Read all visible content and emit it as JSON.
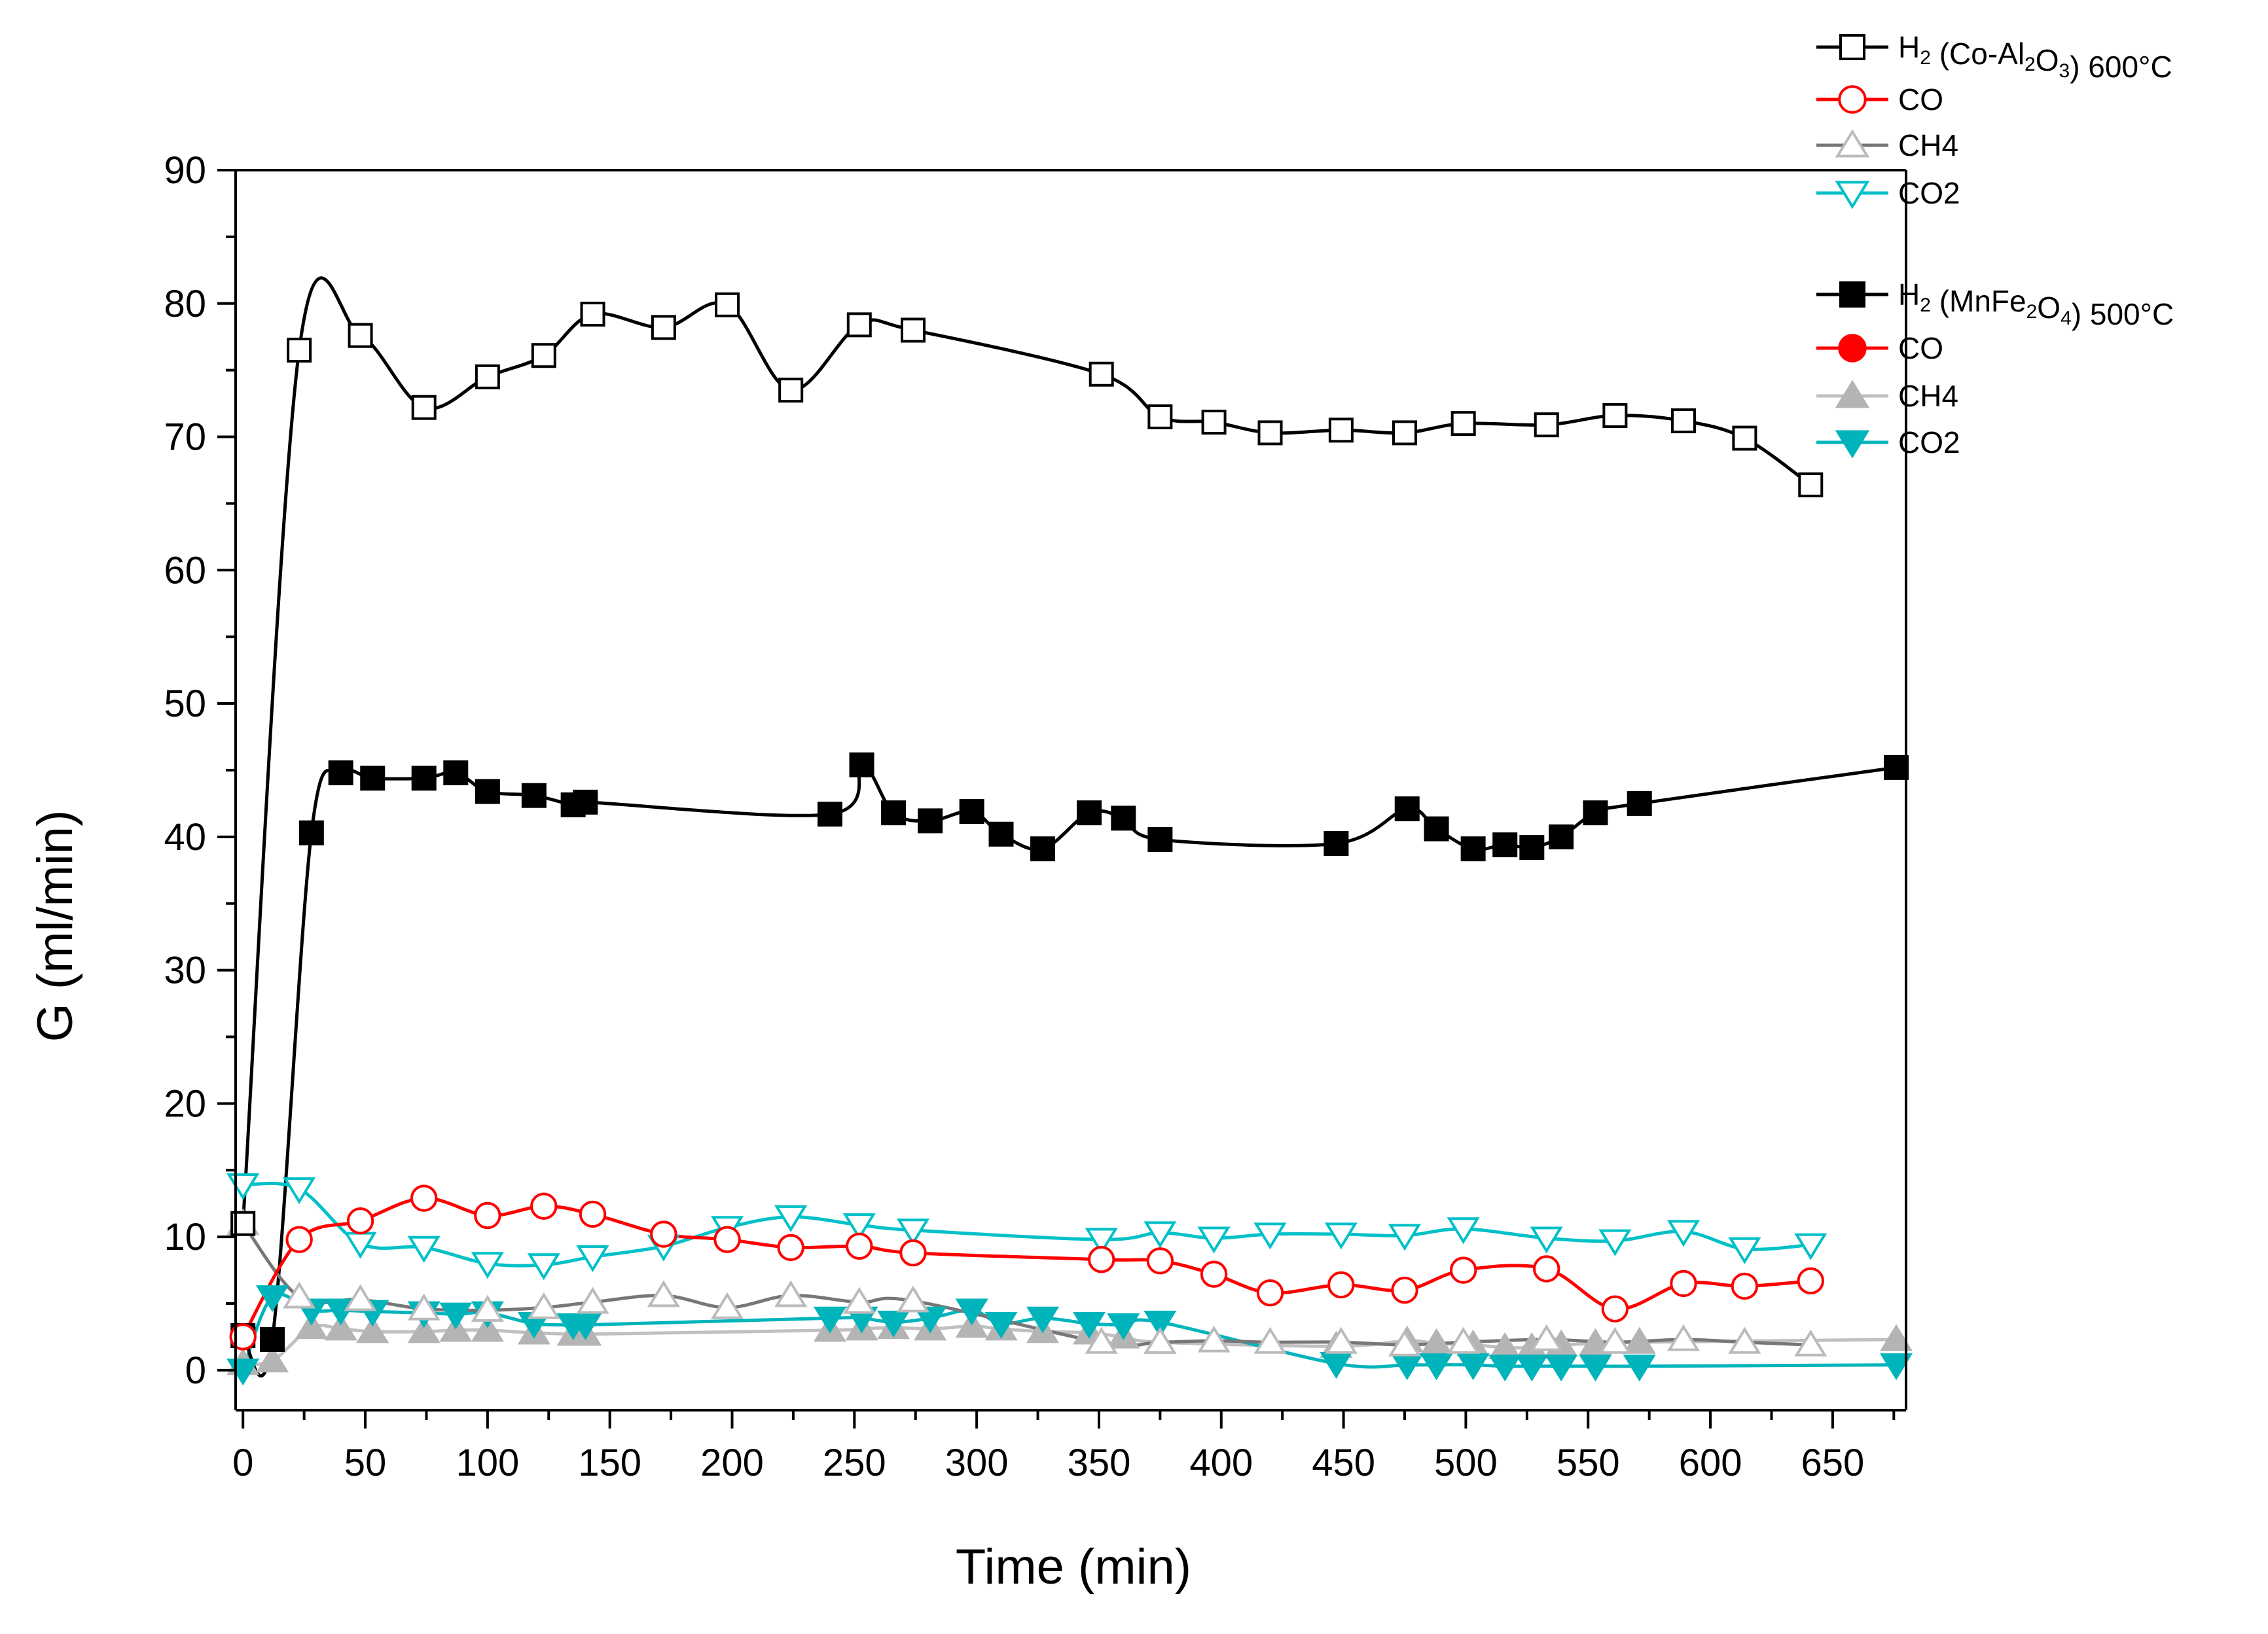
{
  "chart_data": {
    "type": "line",
    "title": "",
    "xlabel": "Time (min)",
    "ylabel": "G (ml/min)",
    "xlim": [
      -3,
      680
    ],
    "ylim": [
      -3,
      90
    ],
    "xticks": [
      0,
      50,
      100,
      150,
      200,
      250,
      300,
      350,
      400,
      450,
      500,
      550,
      600,
      650
    ],
    "yticks": [
      0,
      10,
      20,
      30,
      40,
      50,
      60,
      70,
      80,
      90
    ],
    "legend_position": "top-right",
    "legend_groups": [
      {
        "entries": [
          {
            "series": 0,
            "parts": [
              {
                "t": "H"
              },
              {
                "t": "2",
                "sub": true
              },
              {
                "t": " (Co-Al"
              },
              {
                "t": "2",
                "sub": true
              },
              {
                "t": "O"
              },
              {
                "t": "3",
                "sub": true
              },
              {
                "t": ") 600°C"
              }
            ]
          },
          {
            "series": 1,
            "parts": [
              {
                "t": "CO"
              }
            ]
          },
          {
            "series": 2,
            "parts": [
              {
                "t": "CH4"
              }
            ]
          },
          {
            "series": 3,
            "parts": [
              {
                "t": "CO2"
              }
            ]
          }
        ]
      },
      {
        "entries": [
          {
            "series": 4,
            "parts": [
              {
                "t": "H"
              },
              {
                "t": "2",
                "sub": true
              },
              {
                "t": " (MnFe"
              },
              {
                "t": "2",
                "sub": true
              },
              {
                "t": "O"
              },
              {
                "t": "4",
                "sub": true
              },
              {
                "t": ") 500°C"
              }
            ]
          },
          {
            "series": 5,
            "parts": [
              {
                "t": "CO"
              }
            ]
          },
          {
            "series": 6,
            "parts": [
              {
                "t": "CH4"
              }
            ]
          },
          {
            "series": 7,
            "parts": [
              {
                "t": "CO2"
              }
            ]
          }
        ]
      }
    ],
    "series": [
      {
        "name": "H2 (Co-Al2O3) 600°C",
        "line_color": "#000000",
        "marker": "square-open",
        "marker_color": "#000000",
        "x": [
          0,
          23,
          48,
          74,
          100,
          123,
          143,
          172,
          198,
          224,
          252,
          274,
          351,
          375,
          397,
          420,
          449,
          475,
          499,
          533,
          561,
          589,
          614,
          641
        ],
        "y": [
          11,
          76.5,
          77.6,
          72.2,
          74.5,
          76.1,
          79.2,
          78.2,
          79.9,
          73.5,
          78.4,
          78,
          74.7,
          71.5,
          71.1,
          70.3,
          70.5,
          70.3,
          71,
          70.9,
          71.6,
          71.2,
          69.9,
          66.4
        ]
      },
      {
        "name": "CO",
        "line_color": "#ff0000",
        "marker": "circle-open",
        "marker_color": "#ff0000",
        "x": [
          0,
          23,
          48,
          74,
          100,
          123,
          143,
          172,
          198,
          224,
          252,
          274,
          351,
          375,
          397,
          420,
          449,
          475,
          499,
          533,
          561,
          589,
          614,
          641
        ],
        "y": [
          2.5,
          9.8,
          11.2,
          12.9,
          11.6,
          12.3,
          11.7,
          10.2,
          9.8,
          9.2,
          9.3,
          8.8,
          8.3,
          8.2,
          7.2,
          5.8,
          6.4,
          6,
          7.5,
          7.6,
          4.6,
          6.5,
          6.3,
          6.7
        ]
      },
      {
        "name": "CH4",
        "line_color": "#777777",
        "marker": "triangle-up-open",
        "marker_color": "#bbbbbb",
        "x": [
          0,
          23,
          48,
          74,
          100,
          123,
          143,
          172,
          198,
          224,
          252,
          274,
          351,
          375,
          397,
          420,
          449,
          475,
          499,
          533,
          561,
          589,
          614,
          641
        ],
        "y": [
          11,
          5.5,
          5.3,
          4.6,
          4.5,
          4.7,
          5.1,
          5.6,
          4.7,
          5.6,
          5.1,
          5.2,
          2.1,
          2.1,
          2.2,
          2.1,
          2.1,
          1.9,
          2.1,
          2.3,
          2.1,
          2.3,
          2.1,
          1.9
        ]
      },
      {
        "name": "CO2",
        "line_color": "#00c0c8",
        "marker": "triangle-down-open",
        "marker_color": "#00c0c8",
        "x": [
          0,
          23,
          48,
          74,
          100,
          123,
          143,
          172,
          198,
          224,
          252,
          274,
          351,
          375,
          397,
          420,
          449,
          475,
          499,
          533,
          561,
          589,
          614,
          641
        ],
        "y": [
          13.9,
          13.6,
          9.5,
          9.2,
          8,
          7.9,
          8.5,
          9.3,
          10.7,
          11.5,
          10.9,
          10.5,
          9.8,
          10.3,
          9.9,
          10.2,
          10.2,
          10.1,
          10.6,
          9.9,
          9.7,
          10.4,
          9.1,
          9.4
        ]
      },
      {
        "name": "H2 (MnFe2O4) 500°C",
        "line_color": "#000000",
        "marker": "square-filled",
        "marker_color": "#000000",
        "x": [
          0,
          12,
          28,
          40,
          53,
          74,
          87,
          100,
          119,
          135,
          140,
          240,
          253,
          266,
          281,
          298,
          310,
          327,
          346,
          360,
          375,
          447,
          476,
          488,
          503,
          516,
          527,
          539,
          553,
          571,
          676
        ],
        "y": [
          2.6,
          2.3,
          40.3,
          44.8,
          44.4,
          44.4,
          44.8,
          43.4,
          43.1,
          42.4,
          42.6,
          41.7,
          45.4,
          41.8,
          41.2,
          41.9,
          40.2,
          39.1,
          41.8,
          41.4,
          39.8,
          39.5,
          42.1,
          40.6,
          39.1,
          39.4,
          39.2,
          40,
          41.8,
          42.5,
          45.2
        ]
      },
      {
        "name": "CO",
        "line_color": "#ff0000",
        "marker": "circle-filled",
        "marker_color": "#ff0000",
        "x": [],
        "y": []
      },
      {
        "name": "CH4",
        "line_color": "#c0c0c0",
        "marker": "triangle-up-filled",
        "marker_color": "#b4b4b4",
        "x": [
          0,
          12,
          28,
          40,
          53,
          74,
          87,
          100,
          119,
          135,
          140,
          240,
          253,
          266,
          281,
          298,
          310,
          327,
          346,
          360,
          375,
          447,
          476,
          488,
          503,
          516,
          527,
          539,
          553,
          571,
          676
        ],
        "y": [
          0.5,
          0.7,
          3.2,
          3.1,
          2.9,
          2.9,
          3,
          3,
          2.8,
          2.7,
          2.7,
          3,
          3.1,
          3.2,
          3.1,
          3.3,
          3.1,
          2.9,
          2.8,
          2.5,
          2.1,
          1.8,
          2.2,
          2,
          1.9,
          1.7,
          1.7,
          1.9,
          2,
          2.1,
          2.3
        ]
      },
      {
        "name": "CO2",
        "line_color": "#00b4bb",
        "marker": "triangle-down-filled",
        "marker_color": "#00b4bb",
        "x": [
          0,
          12,
          28,
          40,
          53,
          74,
          87,
          100,
          119,
          135,
          140,
          240,
          253,
          266,
          281,
          298,
          310,
          327,
          346,
          360,
          375,
          447,
          476,
          488,
          503,
          516,
          527,
          539,
          553,
          571,
          676
        ],
        "y": [
          0,
          5.5,
          4.5,
          4.5,
          4.4,
          4.3,
          4.2,
          4.3,
          3.5,
          3.4,
          3.4,
          3.9,
          3.9,
          3.6,
          3.9,
          4.5,
          3.5,
          3.9,
          3.5,
          3.4,
          3.6,
          0.5,
          0.4,
          0.4,
          0.4,
          0.3,
          0.3,
          0.3,
          0.3,
          0.3,
          0.4
        ]
      }
    ]
  }
}
